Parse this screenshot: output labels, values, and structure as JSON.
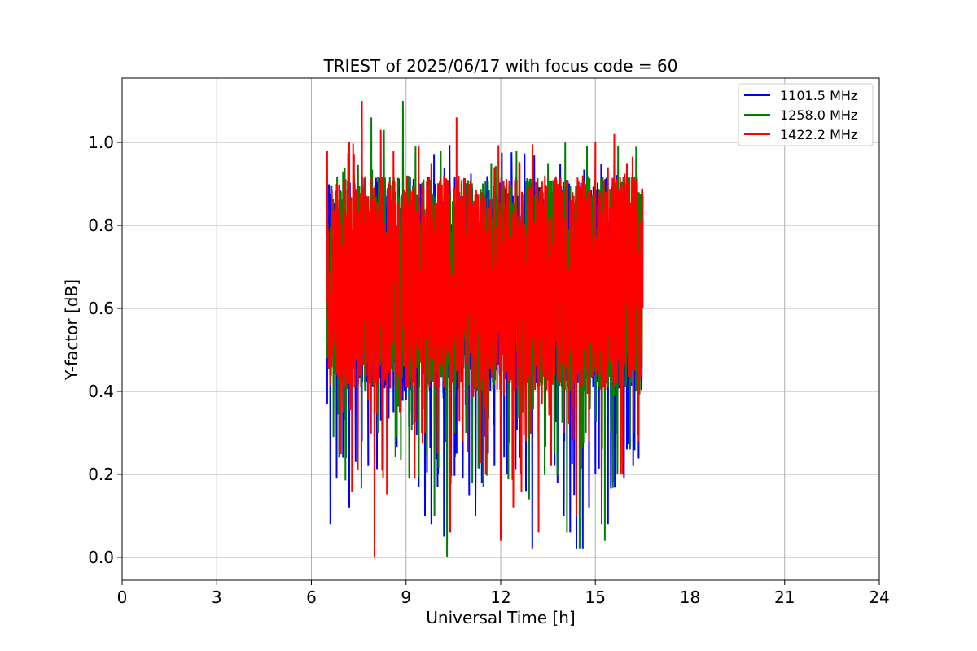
{
  "chart_data": {
    "type": "line",
    "title": "TRIEST of 2025/06/17 with focus code = 60",
    "xlabel": "Universal Time [h]",
    "ylabel": "Y-factor [dB]",
    "xlim": [
      0,
      24
    ],
    "ylim": [
      -0.055,
      1.155
    ],
    "xticks": [
      0,
      3,
      6,
      9,
      12,
      15,
      18,
      21,
      24
    ],
    "yticks": [
      0.0,
      0.2,
      0.4,
      0.6,
      0.8,
      1.0
    ],
    "xtick_labels": [
      "0",
      "3",
      "6",
      "9",
      "12",
      "15",
      "18",
      "21",
      "24"
    ],
    "ytick_labels": [
      "0.0",
      "0.2",
      "0.4",
      "0.6",
      "0.8",
      "1.0"
    ],
    "grid": true,
    "legend_position": "top-right",
    "data_range_x": [
      6.5,
      16.5
    ],
    "series": [
      {
        "name": "1101.5 MHz",
        "color": "#0000ff",
        "x": [
          6.5,
          6.6,
          6.8,
          7.0,
          7.2,
          7.4,
          7.6,
          7.8,
          8.0,
          8.2,
          8.4,
          8.6,
          8.8,
          9.0,
          9.2,
          9.4,
          9.6,
          9.8,
          10.0,
          10.2,
          10.4,
          10.6,
          10.8,
          11.0,
          11.2,
          11.4,
          11.6,
          11.8,
          12.0,
          12.2,
          12.4,
          12.6,
          12.8,
          13.0,
          13.2,
          13.4,
          13.6,
          13.8,
          14.0,
          14.2,
          14.4,
          14.6,
          14.8,
          15.0,
          15.2,
          15.4,
          15.6,
          15.8,
          16.0,
          16.2,
          16.5
        ],
        "y": [
          0.37,
          0.08,
          0.19,
          0.24,
          0.12,
          0.23,
          0.28,
          0.22,
          0.26,
          0.33,
          0.23,
          0.35,
          0.62,
          0.38,
          0.32,
          0.17,
          0.1,
          0.08,
          0.17,
          0.05,
          0.2,
          0.25,
          0.19,
          0.15,
          0.1,
          0.18,
          0.25,
          0.22,
          0.16,
          0.2,
          0.32,
          0.24,
          0.16,
          0.02,
          0.22,
          0.28,
          0.26,
          0.18,
          0.1,
          0.06,
          0.02,
          0.02,
          0.12,
          0.2,
          0.14,
          0.08,
          0.95,
          0.88,
          0.26,
          0.22,
          0.87
        ]
      },
      {
        "name": "1258.0 MHz",
        "color": "#008000",
        "x": [
          6.5,
          6.7,
          6.9,
          7.1,
          7.3,
          7.5,
          7.7,
          7.9,
          8.1,
          8.3,
          8.5,
          8.7,
          8.9,
          9.1,
          9.3,
          9.5,
          9.7,
          9.9,
          10.1,
          10.3,
          10.5,
          10.7,
          10.9,
          11.1,
          11.3,
          11.5,
          11.7,
          11.9,
          12.1,
          12.3,
          12.5,
          12.7,
          12.9,
          13.1,
          13.3,
          13.5,
          13.7,
          13.9,
          14.1,
          14.3,
          14.5,
          14.7,
          14.9,
          15.1,
          15.3,
          15.5,
          15.7,
          15.9,
          16.1,
          16.3,
          16.5
        ],
        "y": [
          0.48,
          0.29,
          0.36,
          0.24,
          0.55,
          0.44,
          0.4,
          1.06,
          0.3,
          1.03,
          0.8,
          0.29,
          1.1,
          0.19,
          0.99,
          0.3,
          0.42,
          0.1,
          0.98,
          0.0,
          0.42,
          0.55,
          0.3,
          0.18,
          0.58,
          0.4,
          0.95,
          0.52,
          0.6,
          0.42,
          0.98,
          0.35,
          0.14,
          0.5,
          0.38,
          0.95,
          0.25,
          0.42,
          0.06,
          0.7,
          0.02,
          0.3,
          0.5,
          0.48,
          0.04,
          0.3,
          0.2,
          0.48,
          0.26,
          0.4,
          0.82
        ]
      },
      {
        "name": "1422.2 MHz",
        "color": "#ff0000",
        "x": [
          6.5,
          6.6,
          6.8,
          7.0,
          7.2,
          7.4,
          7.6,
          7.8,
          8.0,
          8.2,
          8.4,
          8.6,
          8.8,
          9.0,
          9.2,
          9.4,
          9.6,
          9.8,
          10.0,
          10.2,
          10.4,
          10.6,
          10.8,
          11.0,
          11.2,
          11.4,
          11.6,
          11.8,
          12.0,
          12.2,
          12.4,
          12.6,
          12.8,
          13.0,
          13.2,
          13.4,
          13.6,
          13.8,
          14.0,
          14.2,
          14.4,
          14.6,
          14.8,
          15.0,
          15.2,
          15.4,
          15.6,
          15.8,
          16.0,
          16.2,
          16.5
        ],
        "y": [
          0.98,
          0.42,
          0.9,
          0.35,
          1.0,
          0.5,
          1.1,
          0.38,
          0.0,
          1.03,
          0.6,
          0.98,
          0.35,
          0.88,
          0.45,
          0.99,
          0.3,
          0.95,
          0.25,
          0.92,
          0.06,
          1.06,
          0.28,
          0.9,
          0.4,
          0.88,
          0.3,
          0.94,
          0.04,
          0.82,
          0.12,
          0.95,
          0.28,
          0.86,
          0.06,
          0.92,
          0.22,
          0.9,
          0.3,
          0.86,
          0.1,
          0.92,
          0.28,
          1.0,
          0.08,
          0.94,
          1.02,
          0.2,
          0.95,
          0.3,
          0.6
        ]
      }
    ]
  }
}
